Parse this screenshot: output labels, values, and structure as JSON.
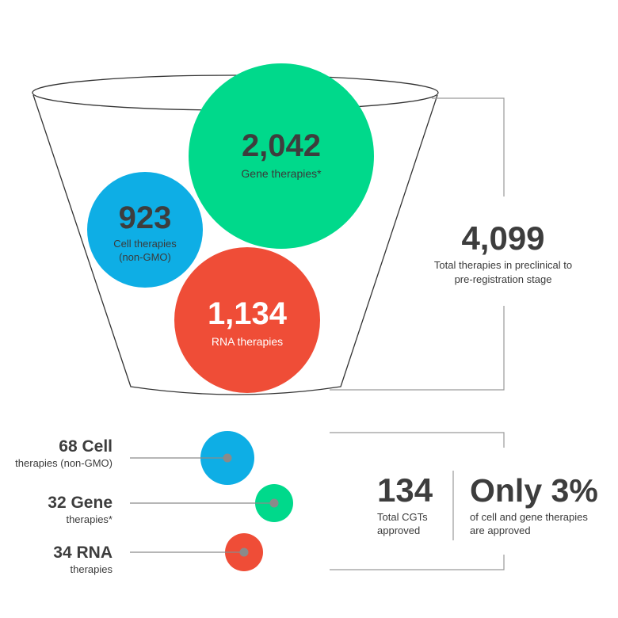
{
  "pipeline": {
    "gene": {
      "value": "2,042",
      "label": "Gene therapies*",
      "color": "#00d98b"
    },
    "cell": {
      "value": "923",
      "label_line1": "Cell therapies",
      "label_line2": "(non-GMO)",
      "color": "#0eaee5"
    },
    "rna": {
      "value": "1,134",
      "label": "RNA therapies",
      "color": "#ef4d37"
    },
    "total": {
      "value": "4,099",
      "label_line1": "Total therapies in preclinical to",
      "label_line2": "pre-registration stage"
    }
  },
  "approved": {
    "cell": {
      "count": "68 Cell",
      "desc": "therapies (non-GMO)",
      "color": "#0eaee5"
    },
    "gene": {
      "count": "32 Gene",
      "desc": "therapies*",
      "color": "#00d98b"
    },
    "rna": {
      "count": "34 RNA",
      "desc": "therapies",
      "color": "#ef4d37"
    },
    "total": {
      "value": "134",
      "label_line1": "Total CGTs",
      "label_line2": "approved"
    },
    "share": {
      "value": "Only 3%",
      "label_line1": "of cell and gene therapies",
      "label_line2": "are approved"
    }
  }
}
